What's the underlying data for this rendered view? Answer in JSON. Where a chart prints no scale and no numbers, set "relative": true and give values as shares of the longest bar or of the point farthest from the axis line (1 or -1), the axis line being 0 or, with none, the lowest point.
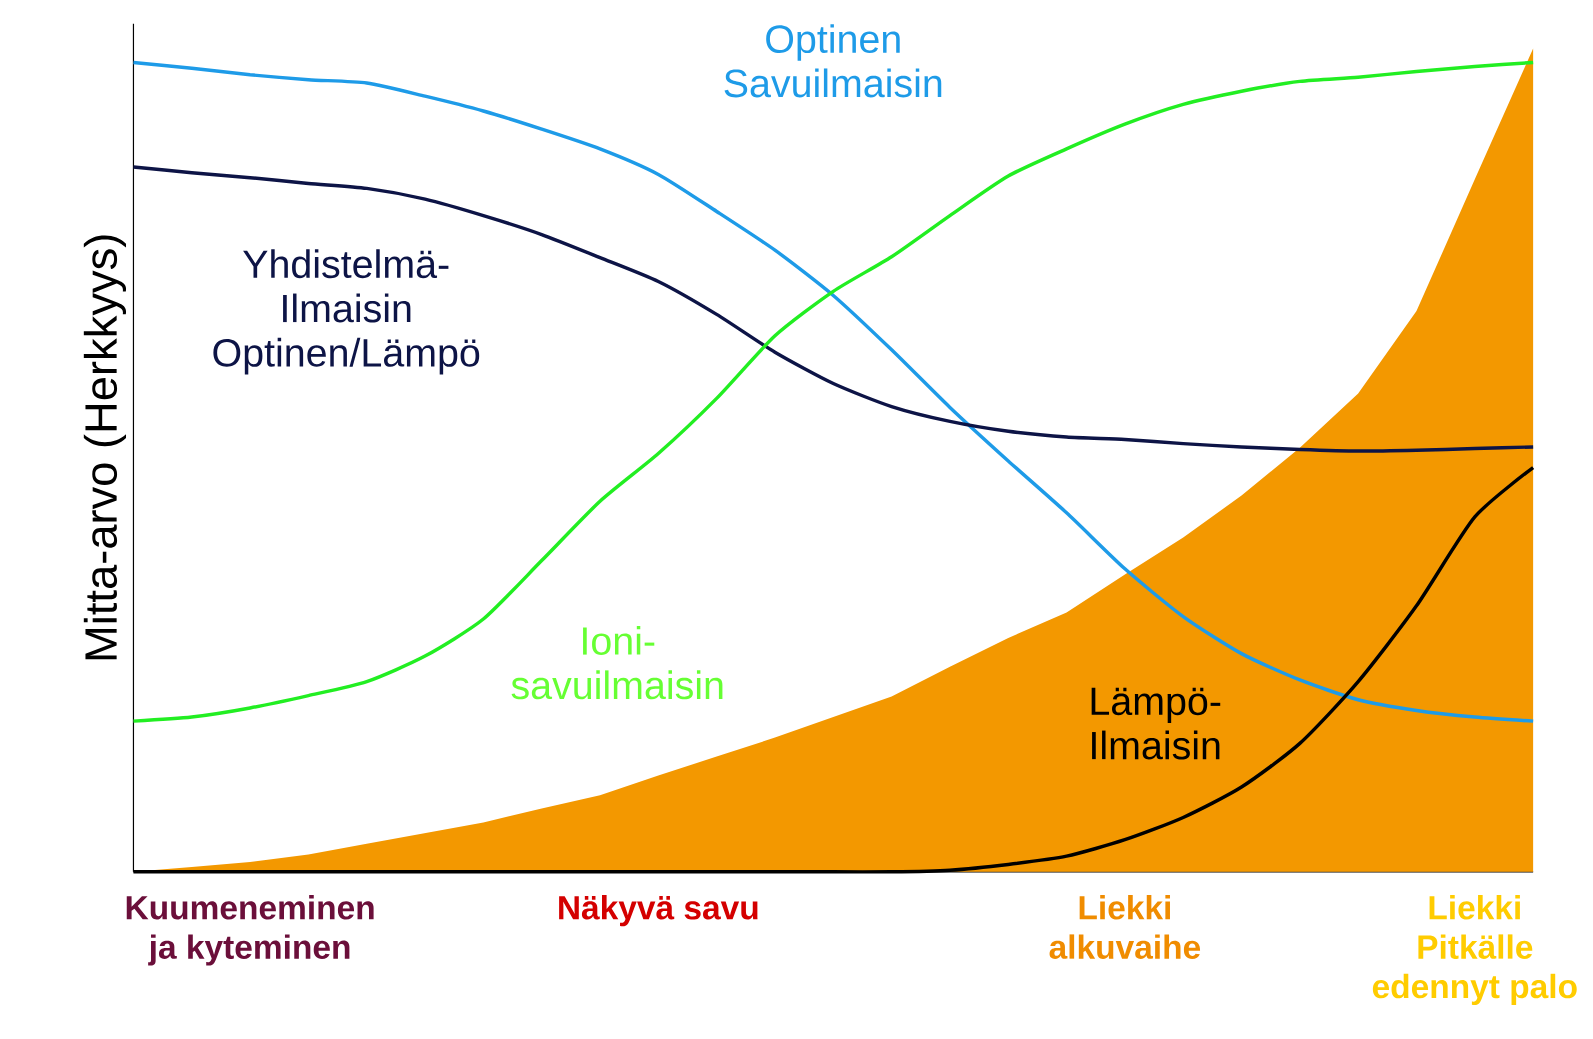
{
  "chart_data": {
    "type": "line",
    "relative": true,
    "ylabel": "Mitta-arvo (Herkkyys)",
    "categories": [
      null,
      null,
      "Kuumeneminen ja kyteminen",
      null,
      null,
      null,
      null,
      null,
      null,
      "Näkyvä savu",
      null,
      null,
      null,
      null,
      null,
      null,
      null,
      "Liekki alkuvaihe",
      null,
      null,
      null,
      null,
      null,
      "Liekki Pitkälle edennyt palo",
      null
    ],
    "series": [
      {
        "type": "area",
        "color": "#f39800",
        "values": [
          0,
          0.006,
          0.012,
          0.021,
          0.034,
          0.047,
          0.06,
          0.077,
          0.093,
          0.117,
          0.14,
          0.163,
          0.188,
          0.213,
          0.249,
          0.284,
          0.315,
          0.361,
          0.406,
          0.457,
          0.515,
          0.581,
          0.681,
          0.841,
          1.0
        ]
      },
      {
        "name": "Optinen Savuilmaisin",
        "color": "#1e9be8",
        "values": [
          0.983,
          0.976,
          0.968,
          0.962,
          0.958,
          0.942,
          0.924,
          0.902,
          0.878,
          0.847,
          0.802,
          0.755,
          0.7,
          0.634,
          0.564,
          0.499,
          0.436,
          0.368,
          0.31,
          0.265,
          0.233,
          0.209,
          0.196,
          0.188,
          0.183
        ]
      },
      {
        "name": "Yhdistelmä- Ilmaisin Optinen/Lämpö",
        "color": "#0d1446",
        "values": [
          0.856,
          0.849,
          0.843,
          0.836,
          0.83,
          0.817,
          0.797,
          0.774,
          0.746,
          0.717,
          0.677,
          0.631,
          0.593,
          0.565,
          0.547,
          0.535,
          0.528,
          0.525,
          0.52,
          0.516,
          0.513,
          0.511,
          0.512,
          0.514,
          0.516
        ]
      },
      {
        "name": "Ioni- savuilmaisin",
        "color": "#22ee22",
        "values": [
          0.183,
          0.188,
          0.199,
          0.214,
          0.231,
          0.262,
          0.307,
          0.378,
          0.45,
          0.508,
          0.575,
          0.651,
          0.705,
          0.747,
          0.797,
          0.845,
          0.878,
          0.908,
          0.932,
          0.948,
          0.96,
          0.965,
          0.972,
          0.978,
          0.983
        ]
      },
      {
        "name": "Lämpö- Ilmaisin",
        "color": "#000000",
        "values": [
          0,
          0,
          0,
          0,
          0,
          0,
          0,
          0,
          0,
          0,
          0,
          0,
          0,
          0,
          0.002,
          0.009,
          0.019,
          0.039,
          0.066,
          0.103,
          0.156,
          0.231,
          0.323,
          0.431,
          0.491
        ]
      }
    ]
  }
}
